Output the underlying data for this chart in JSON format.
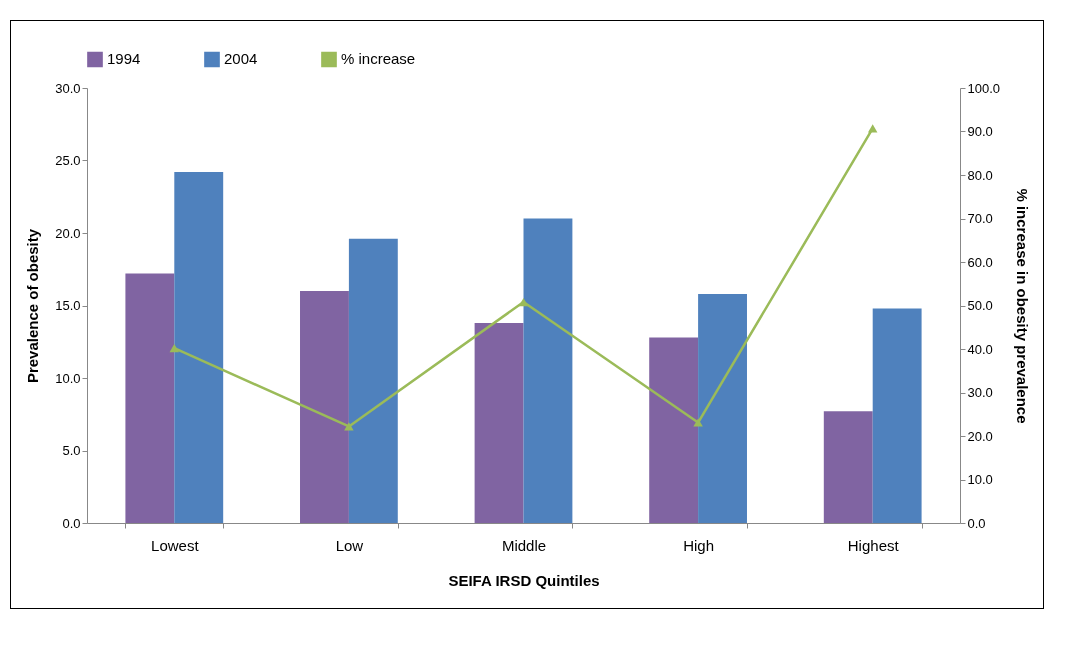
{
  "chart_data": {
    "type": "bar",
    "xlabel": "SEIFA IRSD Quintiles",
    "ylabel": "Prevalence of obesity",
    "y2label": "% increase in obesity prevalence",
    "categories": [
      "Lowest",
      "Low",
      "Middle",
      "High",
      "Highest"
    ],
    "series": [
      {
        "name": "1994",
        "color": "#8064a2",
        "values": [
          17.2,
          16.0,
          13.8,
          12.8,
          7.7
        ]
      },
      {
        "name": "2004",
        "color": "#4f81bd",
        "values": [
          24.2,
          19.6,
          21.0,
          15.8,
          14.8
        ]
      },
      {
        "name": "% increase",
        "type": "line",
        "axis": "y2",
        "color": "#9bbb59",
        "values": [
          40.2,
          22.2,
          50.8,
          23.1,
          90.7
        ]
      }
    ],
    "ylim": [
      0,
      30
    ],
    "yticks": [
      {
        "value": 0,
        "label": "0.0"
      },
      {
        "value": 5,
        "label": "5.0"
      },
      {
        "value": 10,
        "label": "10.0"
      },
      {
        "value": 15,
        "label": "15.0"
      },
      {
        "value": 20,
        "label": "20.0"
      },
      {
        "value": 25,
        "label": "25.0"
      },
      {
        "value": 30,
        "label": "30.0"
      }
    ],
    "y2lim": [
      0,
      100
    ],
    "y2ticks": [
      {
        "value": 0,
        "label": "0.0"
      },
      {
        "value": 10,
        "label": "10.0"
      },
      {
        "value": 20,
        "label": "20.0"
      },
      {
        "value": 30,
        "label": "30.0"
      },
      {
        "value": 40,
        "label": "40.0"
      },
      {
        "value": 50,
        "label": "50.0"
      },
      {
        "value": 60,
        "label": "60.0"
      },
      {
        "value": 70,
        "label": "70.0"
      },
      {
        "value": 80,
        "label": "80.0"
      },
      {
        "value": 90,
        "label": "90.0"
      },
      {
        "value": 100,
        "label": "100.0"
      }
    ],
    "legend": "top",
    "marker": "triangle",
    "line_style": "solid"
  }
}
